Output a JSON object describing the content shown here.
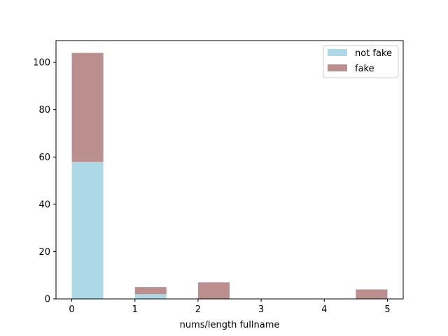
{
  "chart_data": {
    "type": "bar",
    "stacked": true,
    "title": "",
    "xlabel": "nums/length fullname",
    "ylabel": "",
    "xlim": [
      -0.25,
      5.25
    ],
    "ylim": [
      0,
      109.2
    ],
    "bin_width": 0.5,
    "xticks": [
      0,
      1,
      2,
      3,
      4,
      5
    ],
    "yticks": [
      0,
      20,
      40,
      60,
      80,
      100
    ],
    "grid": false,
    "legend_position": "top-right",
    "series": [
      {
        "name": "not fake",
        "color": "#add8e6",
        "bins": [
          {
            "x_start": 0.0,
            "value": 58
          },
          {
            "x_start": 0.5,
            "value": 0
          },
          {
            "x_start": 1.0,
            "value": 2
          },
          {
            "x_start": 1.5,
            "value": 0
          },
          {
            "x_start": 2.0,
            "value": 0
          },
          {
            "x_start": 2.5,
            "value": 0
          },
          {
            "x_start": 3.0,
            "value": 0
          },
          {
            "x_start": 3.5,
            "value": 0
          },
          {
            "x_start": 4.0,
            "value": 0
          },
          {
            "x_start": 4.5,
            "value": 0
          }
        ]
      },
      {
        "name": "fake",
        "color": "#bc8f8f",
        "bins": [
          {
            "x_start": 0.0,
            "value": 46
          },
          {
            "x_start": 0.5,
            "value": 0
          },
          {
            "x_start": 1.0,
            "value": 3
          },
          {
            "x_start": 1.5,
            "value": 0
          },
          {
            "x_start": 2.0,
            "value": 7
          },
          {
            "x_start": 2.5,
            "value": 0
          },
          {
            "x_start": 3.0,
            "value": 0
          },
          {
            "x_start": 3.5,
            "value": 0
          },
          {
            "x_start": 4.0,
            "value": 0
          },
          {
            "x_start": 4.5,
            "value": 4
          }
        ]
      }
    ]
  }
}
